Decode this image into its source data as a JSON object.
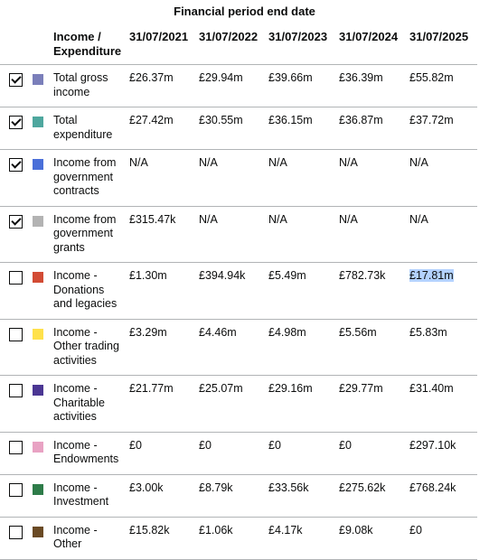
{
  "caption": "Financial period end date",
  "header": {
    "label_col": "Income / Expenditure",
    "dates": [
      "31/07/2021",
      "31/07/2022",
      "31/07/2023",
      "31/07/2024",
      "31/07/2025"
    ]
  },
  "rows": [
    {
      "label": "Total gross income",
      "checked": true,
      "color": "#7b7fba",
      "values": [
        "£26.37m",
        "£29.94m",
        "£39.66m",
        "£36.39m",
        "£55.82m"
      ]
    },
    {
      "label": "Total expenditure",
      "checked": true,
      "color": "#4ea79e",
      "values": [
        "£27.42m",
        "£30.55m",
        "£36.15m",
        "£36.87m",
        "£37.72m"
      ]
    },
    {
      "label": "Income from government contracts",
      "checked": true,
      "color": "#4a6fd9",
      "values": [
        "N/A",
        "N/A",
        "N/A",
        "N/A",
        "N/A"
      ]
    },
    {
      "label": "Income from government grants",
      "checked": true,
      "color": "#b3b3b3",
      "values": [
        "£315.47k",
        "N/A",
        "N/A",
        "N/A",
        "N/A"
      ]
    },
    {
      "label": "Income - Donations and legacies",
      "checked": false,
      "color": "#d24b34",
      "values": [
        "£1.30m",
        "£394.94k",
        "£5.49m",
        "£782.73k",
        "£17.81m"
      ],
      "highlight_index": 4
    },
    {
      "label": "Income - Other trading activities",
      "checked": false,
      "color": "#ffe14b",
      "values": [
        "£3.29m",
        "£4.46m",
        "£4.98m",
        "£5.56m",
        "£5.83m"
      ]
    },
    {
      "label": "Income - Charitable activities",
      "checked": false,
      "color": "#4b3693",
      "values": [
        "£21.77m",
        "£25.07m",
        "£29.16m",
        "£29.77m",
        "£31.40m"
      ]
    },
    {
      "label": "Income - Endowments",
      "checked": false,
      "color": "#e8a2c3",
      "values": [
        "£0",
        "£0",
        "£0",
        "£0",
        "£297.10k"
      ]
    },
    {
      "label": "Income - Investment",
      "checked": false,
      "color": "#2e7c49",
      "values": [
        "£3.00k",
        "£8.79k",
        "£33.56k",
        "£275.62k",
        "£768.24k"
      ]
    },
    {
      "label": "Income - Other",
      "checked": false,
      "color": "#6a4a24",
      "values": [
        "£15.82k",
        "£1.06k",
        "£4.17k",
        "£9.08k",
        "£0"
      ]
    }
  ]
}
